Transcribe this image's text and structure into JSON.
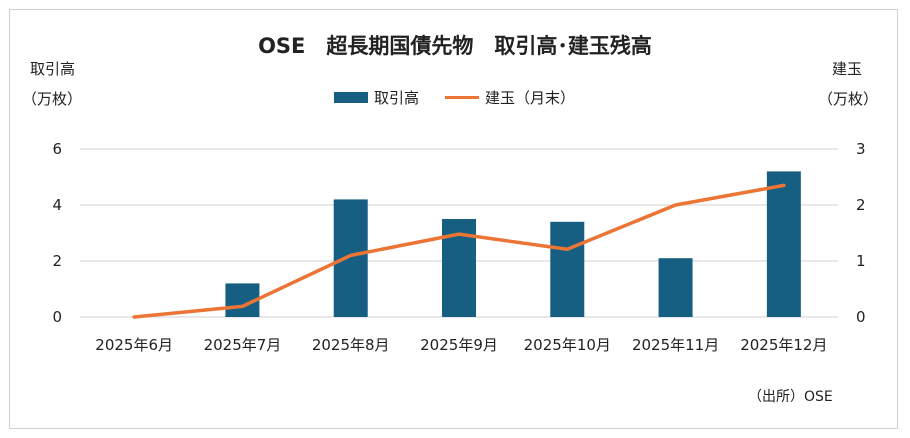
{
  "chart_data": {
    "type": "bar+line",
    "title": "OSE　超長期国債先物　取引高･建玉残高",
    "ylabel_left": [
      "取引高",
      "（万枚）"
    ],
    "ylabel_right": [
      "建玉",
      "（万枚）"
    ],
    "categories": [
      "2025年6月",
      "2025年7月",
      "2025年8月",
      "2025年9月",
      "2025年10月",
      "2025年11月",
      "2025年12月"
    ],
    "series": [
      {
        "name": "取引高",
        "type": "bar",
        "axis": "left",
        "color": "#175f82",
        "values": [
          0,
          1.2,
          4.2,
          3.5,
          3.4,
          2.1,
          5.2
        ]
      },
      {
        "name": "建玉（月末）",
        "type": "line",
        "axis": "right",
        "color": "#ec7434",
        "values": [
          0,
          0.19,
          1.1,
          1.48,
          1.21,
          2.0,
          2.35
        ]
      }
    ],
    "ylim_left": [
      0,
      6
    ],
    "yticks_left": [
      "0",
      "2",
      "4",
      "6"
    ],
    "ylim_right": [
      0,
      3
    ],
    "yticks_right": [
      "0",
      "1",
      "2",
      "3"
    ],
    "grid": true,
    "legend": "top-center",
    "source": "（出所）OSE"
  }
}
